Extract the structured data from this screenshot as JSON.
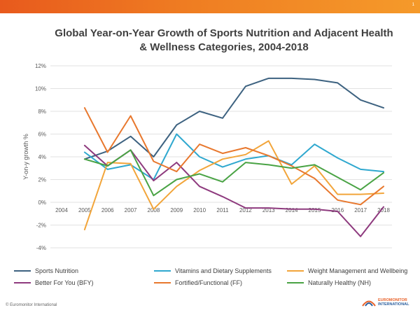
{
  "header": {
    "slide_number": "1",
    "title_line1": "Global Year-on-Year Growth of Sports Nutrition and Adjacent Health",
    "title_line2": "& Wellness Categories, 2004-2018",
    "accent_color": "#ef7d22"
  },
  "footer": {
    "copyright": "© Euromonitor International",
    "logo_line1": "EUROMONITOR",
    "logo_line2": "INTERNATIONAL"
  },
  "chart_data": {
    "type": "line",
    "title": "Global Year-on-Year Growth of Sports Nutrition and Adjacent Health & Wellness Categories, 2004-2018",
    "xlabel": "",
    "ylabel": "Y-on-y growth %",
    "x": [
      "2004",
      "2005",
      "2006",
      "2007",
      "2008",
      "2009",
      "2010",
      "2011",
      "2012",
      "2013",
      "2014",
      "2015",
      "2016",
      "2017",
      "2018"
    ],
    "ylim": [
      -4,
      12
    ],
    "yticks": [
      "-4%",
      "-2%",
      "0%",
      "2%",
      "4%",
      "6%",
      "8%",
      "10%",
      "12%"
    ],
    "grid": true,
    "legend_position": "bottom",
    "series": [
      {
        "name": "Sports Nutrition",
        "color": "#3d6280",
        "values": [
          null,
          3.8,
          4.5,
          5.8,
          4.0,
          6.8,
          8.0,
          7.4,
          10.2,
          10.9,
          10.9,
          10.8,
          10.5,
          9.0,
          8.3
        ]
      },
      {
        "name": "Vitamins and Dietary Supplements",
        "color": "#2fa8cf",
        "values": [
          null,
          4.4,
          2.9,
          3.3,
          2.0,
          6.0,
          4.0,
          3.1,
          3.8,
          4.1,
          3.3,
          5.1,
          3.9,
          2.9,
          2.7
        ]
      },
      {
        "name": "Weight Management and Wellbeing",
        "color": "#f2a53a",
        "values": [
          null,
          -2.4,
          3.5,
          3.4,
          -0.6,
          1.4,
          2.8,
          3.8,
          4.2,
          5.4,
          1.6,
          3.2,
          0.7,
          0.7,
          0.8
        ]
      },
      {
        "name": "Better For You (BFY)",
        "color": "#8e3a7e",
        "values": [
          null,
          5.0,
          3.2,
          4.6,
          1.9,
          3.5,
          1.4,
          0.5,
          -0.5,
          -0.5,
          -0.6,
          -0.6,
          -0.8,
          -3.0,
          -0.4
        ]
      },
      {
        "name": "Fortified/Functional (FF)",
        "color": "#e8782e",
        "values": [
          null,
          8.3,
          4.4,
          7.6,
          3.6,
          2.7,
          5.1,
          4.3,
          4.8,
          4.1,
          3.2,
          2.1,
          0.2,
          -0.2,
          1.4
        ]
      },
      {
        "name": "Naturally Healthy (NH)",
        "color": "#49a344",
        "values": [
          null,
          3.8,
          3.2,
          4.6,
          0.6,
          2.0,
          2.5,
          1.8,
          3.5,
          3.3,
          3.0,
          3.3,
          2.2,
          1.1,
          2.6
        ]
      }
    ]
  }
}
